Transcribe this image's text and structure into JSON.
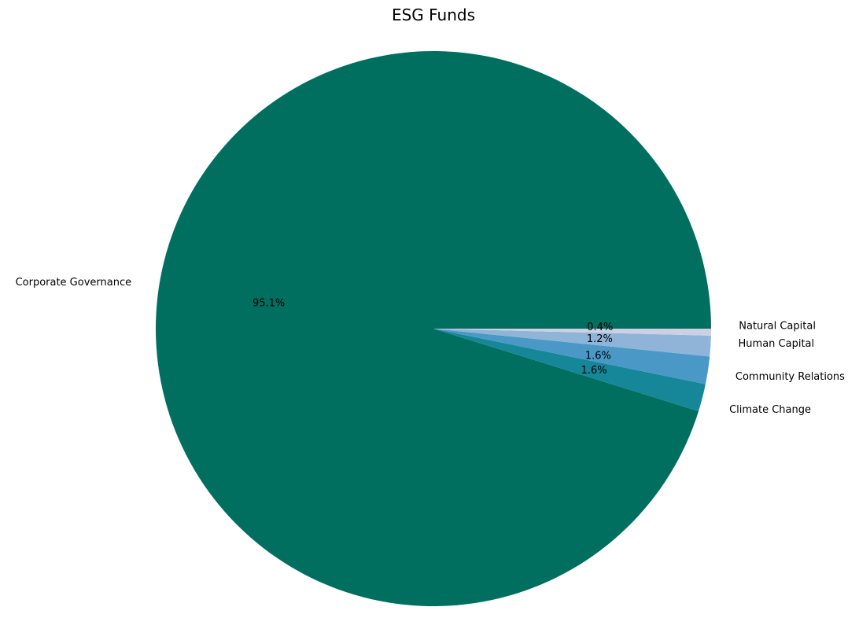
{
  "chart_data": {
    "type": "pie",
    "title": "ESG Funds",
    "categories": [
      "Corporate Governance",
      "Climate Change",
      "Community Relations",
      "Human Capital",
      "Natural Capital"
    ],
    "values": [
      95.1,
      1.6,
      1.6,
      1.2,
      0.4
    ],
    "value_labels": [
      "95.1%",
      "1.6%",
      "1.6%",
      "1.2%",
      "0.4%"
    ],
    "colors": [
      "#016f5f",
      "#168799",
      "#4a98c6",
      "#8fb4d8",
      "#cdd0e4"
    ],
    "start_angle_deg": 0,
    "direction": "counterclockwise",
    "legend": "none"
  }
}
